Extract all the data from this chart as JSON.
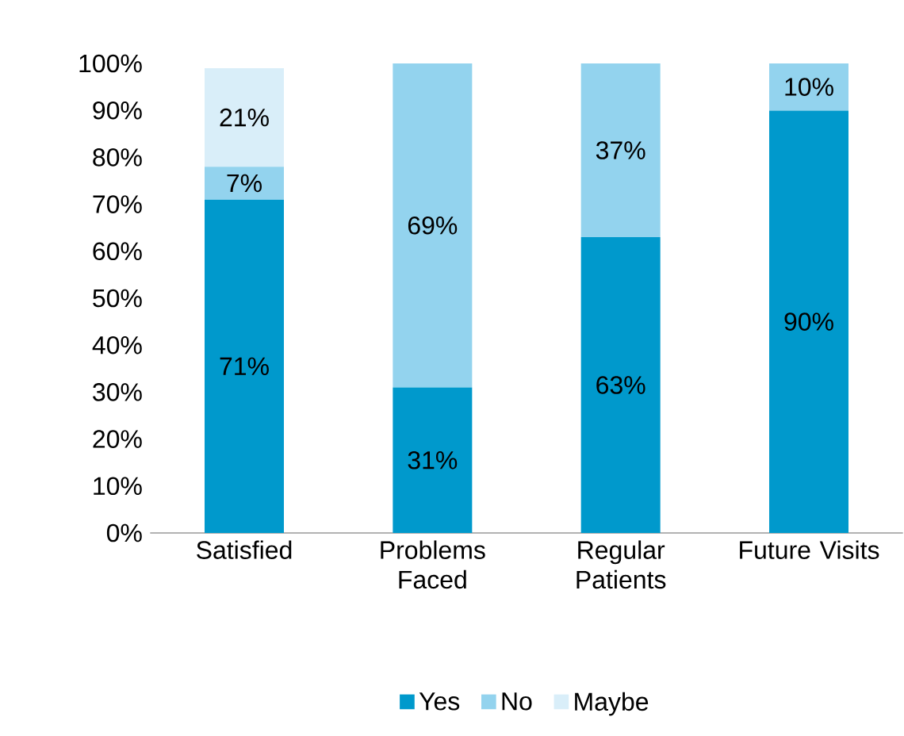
{
  "chart_data": {
    "type": "bar",
    "stacked": true,
    "categories": [
      "Satisfied",
      "Problems Faced",
      "Regular Patients",
      "Future Visits"
    ],
    "series": [
      {
        "name": "Yes",
        "color": "#0099cc",
        "values": [
          71,
          31,
          63,
          90
        ],
        "value_labels": [
          "71%",
          "31%",
          "63%",
          "90%"
        ]
      },
      {
        "name": "No",
        "color": "#93d3ee",
        "values": [
          7,
          69,
          37,
          10
        ],
        "value_labels": [
          "7%",
          "69%",
          "37%",
          "10%"
        ]
      },
      {
        "name": "Maybe",
        "color": "#d9eef9",
        "values": [
          21,
          null,
          null,
          null
        ],
        "value_labels": [
          "21%",
          null,
          null,
          null
        ]
      }
    ],
    "ylim": [
      0,
      100
    ],
    "yticks": [
      {
        "value": 0,
        "label": "0%"
      },
      {
        "value": 10,
        "label": "10%"
      },
      {
        "value": 20,
        "label": "20%"
      },
      {
        "value": 30,
        "label": "30%"
      },
      {
        "value": 40,
        "label": "40%"
      },
      {
        "value": 50,
        "label": "50%"
      },
      {
        "value": 60,
        "label": "60%"
      },
      {
        "value": 70,
        "label": "70%"
      },
      {
        "value": 80,
        "label": "80%"
      },
      {
        "value": 90,
        "label": "90%"
      },
      {
        "value": 100,
        "label": "100%"
      }
    ],
    "legend": "bottom",
    "grid": false
  }
}
